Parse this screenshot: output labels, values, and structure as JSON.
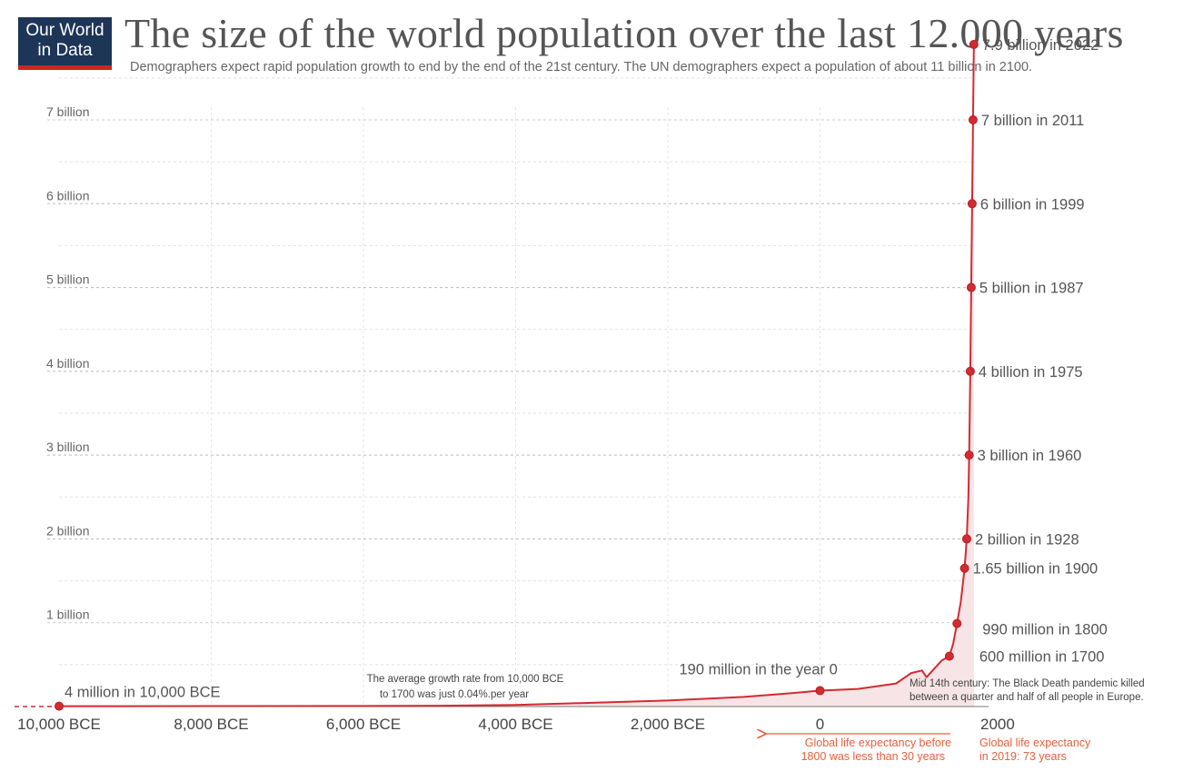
{
  "logo": {
    "line1": "Our World",
    "line2": "in Data"
  },
  "title": "The size of the world population over the last 12.000 years",
  "subtitle": "Demographers expect rapid population growth to end by the end of the 21st century. The UN demographers expect a population of about 11 billion in 2100.",
  "colors": {
    "line": "#d42a32",
    "area": "#f7e4e6",
    "grid": "#d8d8d8",
    "accent": "#e5603d",
    "logo_bg": "#1d3557",
    "logo_bar": "#ce261e"
  },
  "chart_data": {
    "type": "area",
    "x_unit": "year",
    "y_unit": "people",
    "xlim": [
      -10500,
      2050
    ],
    "ylim": [
      0,
      8000000000
    ],
    "y_ticks": [
      {
        "value": 1000000000,
        "label": "1 billion"
      },
      {
        "value": 2000000000,
        "label": "2 billion"
      },
      {
        "value": 3000000000,
        "label": "3 billion"
      },
      {
        "value": 4000000000,
        "label": "4 billion"
      },
      {
        "value": 5000000000,
        "label": "5 billion"
      },
      {
        "value": 6000000000,
        "label": "6 billion"
      },
      {
        "value": 7000000000,
        "label": "7 billion"
      }
    ],
    "x_ticks": [
      {
        "value": -10000,
        "label": "10,000 BCE"
      },
      {
        "value": -8000,
        "label": "8,000 BCE"
      },
      {
        "value": -6000,
        "label": "6,000 BCE"
      },
      {
        "value": -4000,
        "label": "4,000 BCE"
      },
      {
        "value": -2000,
        "label": "2,000 BCE"
      },
      {
        "value": 0,
        "label": "0"
      },
      {
        "value": 2000,
        "label": "2000"
      }
    ],
    "series": [
      {
        "x": [
          -10000,
          -8000,
          -6000,
          -5000,
          -4000,
          -3000,
          -2000,
          -1000,
          -500,
          0,
          500,
          1000,
          1200,
          1340,
          1400,
          1500,
          1600,
          1700,
          1750,
          1800,
          1850,
          1900,
          1928,
          1950,
          1960,
          1975,
          1987,
          1999,
          2011,
          2022
        ],
        "y": [
          4000000,
          5000000,
          7000000,
          10000000,
          19000000,
          45000000,
          72000000,
          115000000,
          150000000,
          190000000,
          210000000,
          275000000,
          400000000,
          430000000,
          350000000,
          450000000,
          550000000,
          600000000,
          750000000,
          990000000,
          1250000000,
          1650000000,
          2000000000,
          2500000000,
          3000000000,
          4000000000,
          5000000000,
          6000000000,
          7000000000,
          7900000000
        ]
      }
    ],
    "points": [
      {
        "x": -10000,
        "y": 4000000,
        "label": "4 million in 10,000 BCE"
      },
      {
        "x": 0,
        "y": 190000000,
        "label": "190 million in the year 0"
      },
      {
        "x": 1700,
        "y": 600000000,
        "label": "600 million in 1700"
      },
      {
        "x": 1800,
        "y": 990000000,
        "label": "990 million in 1800"
      },
      {
        "x": 1900,
        "y": 1650000000,
        "label": "1.65 billion in 1900"
      },
      {
        "x": 1928,
        "y": 2000000000,
        "label": "2 billion in 1928"
      },
      {
        "x": 1960,
        "y": 3000000000,
        "label": "3 billion in 1960"
      },
      {
        "x": 1975,
        "y": 4000000000,
        "label": "4 billion in 1975"
      },
      {
        "x": 1987,
        "y": 5000000000,
        "label": "5 billion in 1987"
      },
      {
        "x": 1999,
        "y": 6000000000,
        "label": "6 billion in 1999"
      },
      {
        "x": 2011,
        "y": 7000000000,
        "label": "7 billion in 2011"
      },
      {
        "x": 2022,
        "y": 7900000000,
        "label": "7.9 billion in 2022"
      }
    ],
    "annotations": {
      "growth_line1": "The average growth rate from 10,000 BCE",
      "growth_line2": "to 1700 was just  0.04%.per year",
      "plague_line1": "Mid 14th century: The Black Death pandemic killed",
      "plague_line2": "between a quarter and half of all people in Europe.",
      "life_before_line1": "Global life expectancy before",
      "life_before_line2": "1800 was less than 30 years",
      "life_2019_line1": "Global life expectancy",
      "life_2019_line2": "in 2019: 73 years"
    }
  }
}
